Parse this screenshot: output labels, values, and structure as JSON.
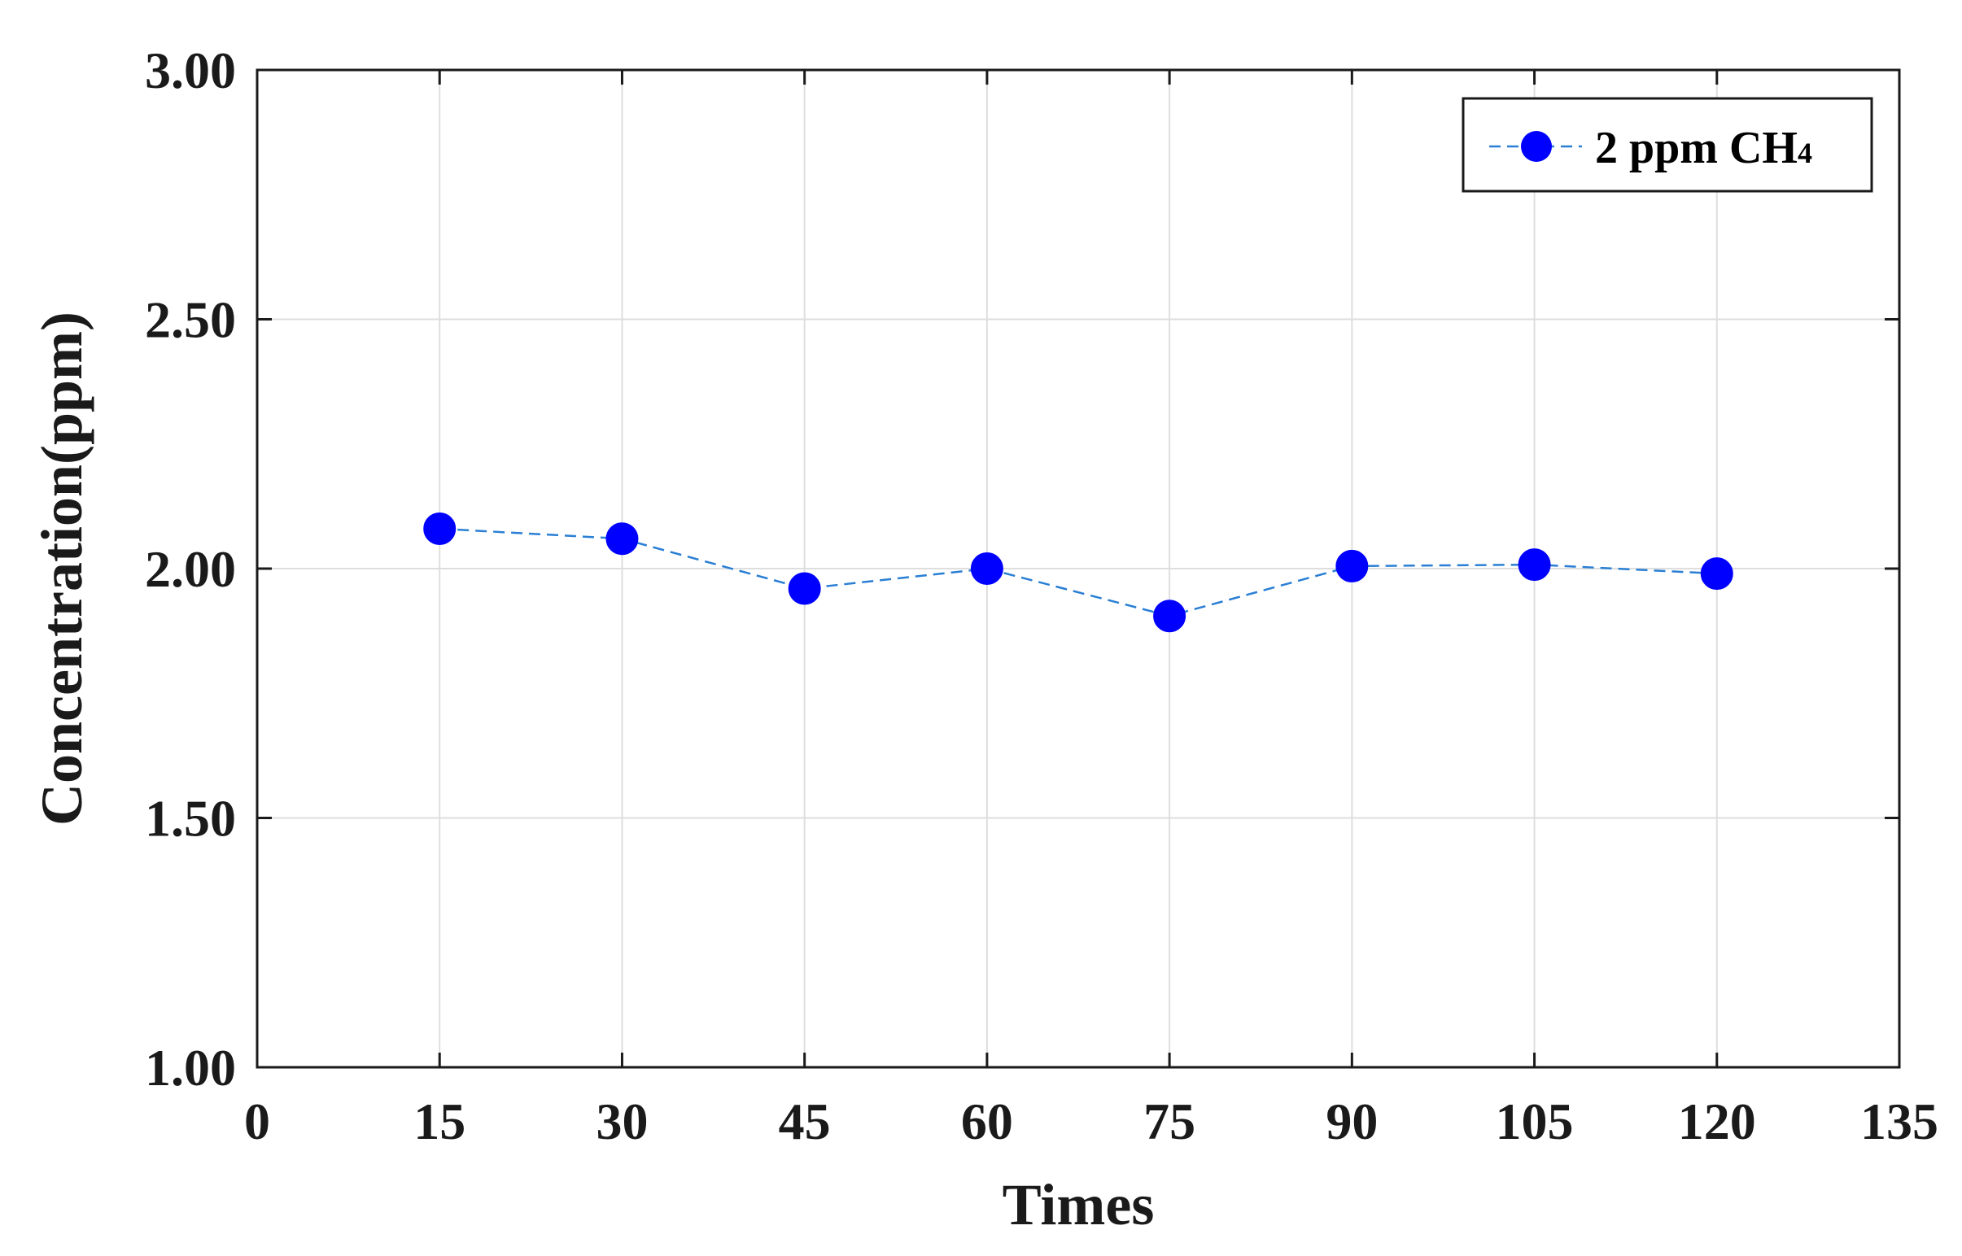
{
  "colors": {
    "marker": "#0000ff",
    "line": "#2a7fd4",
    "grid": "#dedede",
    "axis": "#1a1a1a"
  },
  "chart_data": {
    "type": "line",
    "title": "",
    "xlabel": "Times",
    "ylabel": "Concentration(ppm)",
    "xlim": [
      0,
      135
    ],
    "ylim": [
      1.0,
      3.0
    ],
    "xticks": [
      0,
      15,
      30,
      45,
      60,
      75,
      90,
      105,
      120,
      135
    ],
    "yticks": [
      1.0,
      1.5,
      2.0,
      2.5,
      3.0
    ],
    "xtick_labels": [
      "0",
      "15",
      "30",
      "45",
      "60",
      "75",
      "90",
      "105",
      "120",
      "135"
    ],
    "ytick_labels": [
      "1.00",
      "1.50",
      "2.00",
      "2.50",
      "3.00"
    ],
    "grid": true,
    "legend_position": "top-right",
    "legend": {
      "label_main": "2 ppm CH",
      "label_sub": "4"
    },
    "series": [
      {
        "name": "2 ppm CH4",
        "line_style": "dashed",
        "marker": "circle",
        "x": [
          15,
          30,
          45,
          60,
          75,
          90,
          105,
          120
        ],
        "y": [
          2.08,
          2.06,
          1.96,
          2.0,
          1.905,
          2.005,
          2.008,
          1.99
        ]
      }
    ]
  }
}
